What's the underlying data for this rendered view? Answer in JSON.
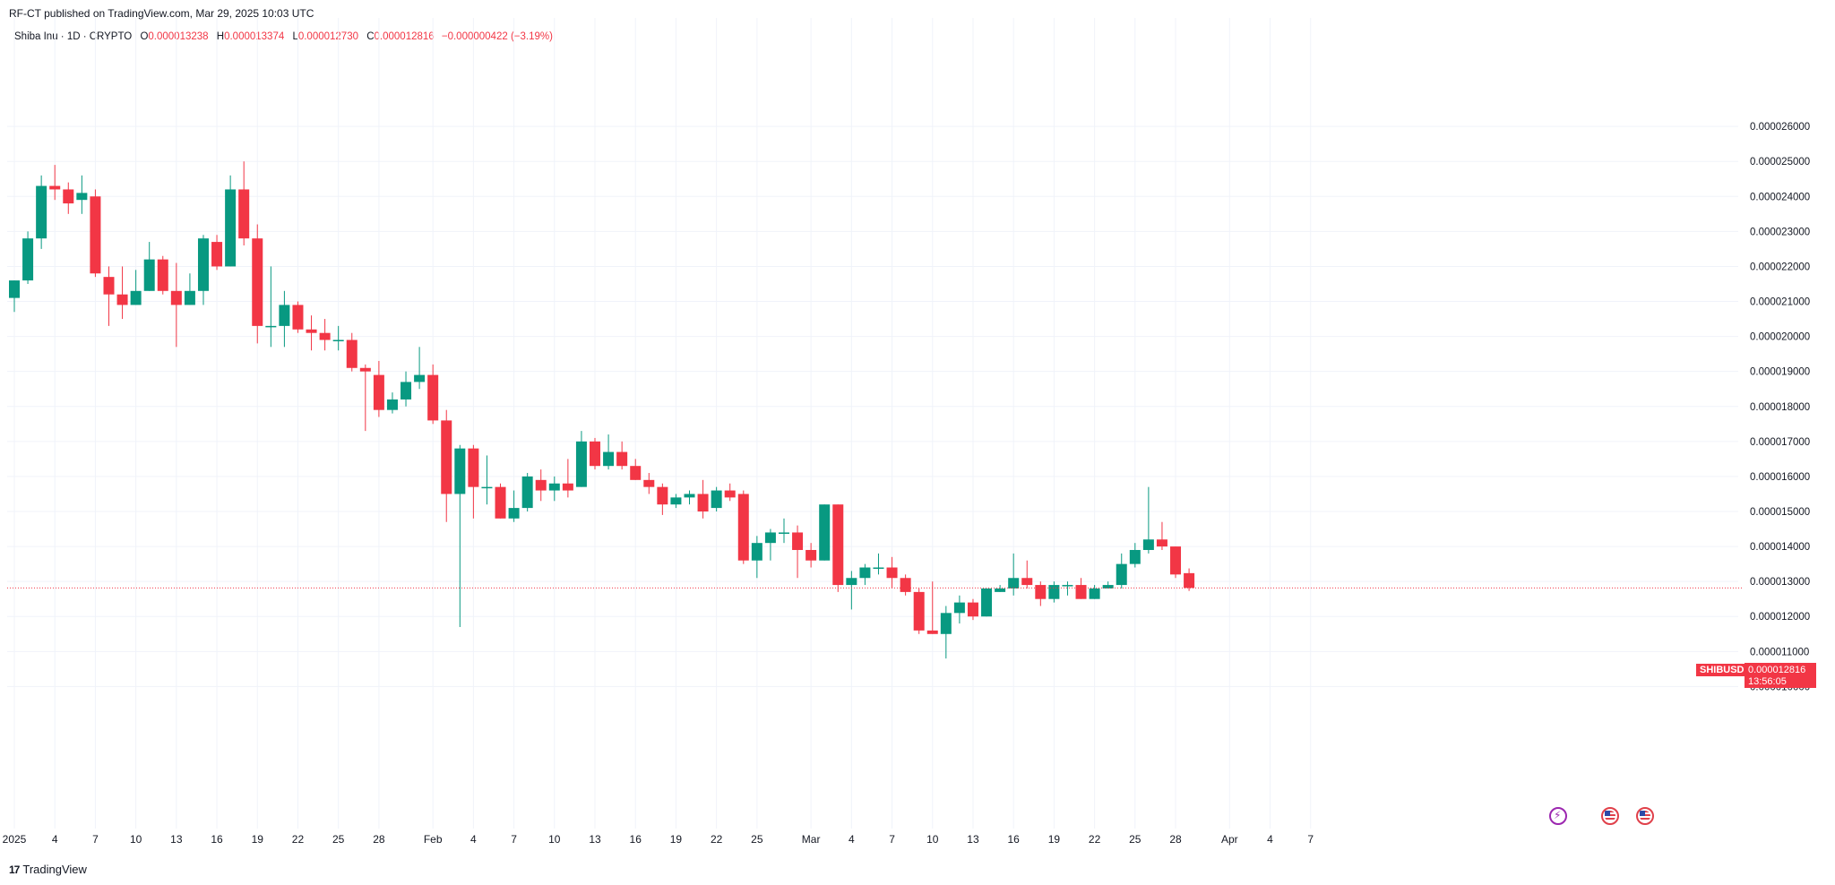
{
  "header": {
    "published_line": "RF-CT published on TradingView.com, Mar 29, 2025 10:03 UTC"
  },
  "legend": {
    "symbol": "Shiba Inu · 1D · CRYPTO",
    "o_label": "O",
    "o_value": "0.000013238",
    "h_label": "H",
    "h_value": "0.000013374",
    "l_label": "L",
    "l_value": "0.000012730",
    "c_label": "C",
    "c_value": "0.000012816",
    "change": "−0.000000422 (−3.19%)"
  },
  "price_scale": {
    "symbol_tag": "SHIBUSD",
    "last_price": "0.000012816",
    "countdown": "13:56:05"
  },
  "footer": {
    "brand": "TradingView"
  },
  "colors": {
    "up": "#089981",
    "down": "#f23645",
    "grid": "#f0f3fa",
    "text": "#131722"
  },
  "icons": [
    "lightning-event-icon",
    "us-flag-event-icon",
    "us-flag-event-icon"
  ],
  "chart_data": {
    "type": "candlestick",
    "title": "Shiba Inu · 1D · CRYPTO",
    "ylim": [
      9.5e-06,
      2.63e-05
    ],
    "y_ticks": [
      "0.000010000",
      "0.000011000",
      "0.000012000",
      "0.000013000",
      "0.000014000",
      "0.000015000",
      "0.000016000",
      "0.000017000",
      "0.000018000",
      "0.000019000",
      "0.000020000",
      "0.000021000",
      "0.000022000",
      "0.000023000",
      "0.000024000",
      "0.000025000",
      "0.000026000"
    ],
    "x_ticks": [
      "2025",
      "4",
      "7",
      "10",
      "13",
      "16",
      "19",
      "22",
      "25",
      "28",
      "Feb",
      "4",
      "7",
      "10",
      "13",
      "16",
      "19",
      "22",
      "25",
      "Mar",
      "4",
      "7",
      "10",
      "13",
      "16",
      "19",
      "22",
      "25",
      "28",
      "Apr",
      "4",
      "7"
    ],
    "x_ticks_start": "2025-01-01",
    "x_ticks_dates": [
      "2025-01-01",
      "2025-01-04",
      "2025-01-07",
      "2025-01-10",
      "2025-01-13",
      "2025-01-16",
      "2025-01-19",
      "2025-01-22",
      "2025-01-25",
      "2025-01-28",
      "2025-02-01",
      "2025-02-04",
      "2025-02-07",
      "2025-02-10",
      "2025-02-13",
      "2025-02-16",
      "2025-02-19",
      "2025-02-22",
      "2025-02-25",
      "2025-03-01",
      "2025-03-04",
      "2025-03-07",
      "2025-03-10",
      "2025-03-13",
      "2025-03-16",
      "2025-03-19",
      "2025-03-22",
      "2025-03-25",
      "2025-03-28",
      "2025-04-01",
      "2025-04-04",
      "2025-04-07"
    ],
    "grid": true,
    "last_price": 1.2816e-05,
    "candles": [
      {
        "d": "2025-01-01",
        "o": 21.1,
        "h": 21.6,
        "l": 20.7,
        "c": 21.6
      },
      {
        "d": "2025-01-02",
        "o": 21.6,
        "h": 23.0,
        "l": 21.5,
        "c": 22.8
      },
      {
        "d": "2025-01-03",
        "o": 22.8,
        "h": 24.6,
        "l": 22.5,
        "c": 24.3
      },
      {
        "d": "2025-01-04",
        "o": 24.3,
        "h": 24.9,
        "l": 23.9,
        "c": 24.2
      },
      {
        "d": "2025-01-05",
        "o": 24.2,
        "h": 24.4,
        "l": 23.5,
        "c": 23.8
      },
      {
        "d": "2025-01-06",
        "o": 23.9,
        "h": 24.6,
        "l": 23.5,
        "c": 24.1
      },
      {
        "d": "2025-01-07",
        "o": 24.0,
        "h": 24.2,
        "l": 21.7,
        "c": 21.8
      },
      {
        "d": "2025-01-08",
        "o": 21.7,
        "h": 22.0,
        "l": 20.3,
        "c": 21.2
      },
      {
        "d": "2025-01-09",
        "o": 21.2,
        "h": 22.0,
        "l": 20.5,
        "c": 20.9
      },
      {
        "d": "2025-01-10",
        "o": 20.9,
        "h": 21.9,
        "l": 20.9,
        "c": 21.3
      },
      {
        "d": "2025-01-11",
        "o": 21.3,
        "h": 22.7,
        "l": 21.3,
        "c": 22.2
      },
      {
        "d": "2025-01-12",
        "o": 22.2,
        "h": 22.3,
        "l": 21.2,
        "c": 21.3
      },
      {
        "d": "2025-01-13",
        "o": 21.3,
        "h": 22.1,
        "l": 19.7,
        "c": 20.9
      },
      {
        "d": "2025-01-14",
        "o": 20.9,
        "h": 21.8,
        "l": 20.9,
        "c": 21.3
      },
      {
        "d": "2025-01-15",
        "o": 21.3,
        "h": 22.9,
        "l": 20.9,
        "c": 22.8
      },
      {
        "d": "2025-01-16",
        "o": 22.7,
        "h": 22.9,
        "l": 21.9,
        "c": 22.0
      },
      {
        "d": "2025-01-17",
        "o": 22.0,
        "h": 24.6,
        "l": 22.0,
        "c": 24.2
      },
      {
        "d": "2025-01-18",
        "o": 24.2,
        "h": 25.0,
        "l": 22.6,
        "c": 22.8
      },
      {
        "d": "2025-01-19",
        "o": 22.8,
        "h": 23.2,
        "l": 19.8,
        "c": 20.3
      },
      {
        "d": "2025-01-20",
        "o": 20.3,
        "h": 22.0,
        "l": 19.7,
        "c": 20.3
      },
      {
        "d": "2025-01-21",
        "o": 20.3,
        "h": 21.3,
        "l": 19.7,
        "c": 20.9
      },
      {
        "d": "2025-01-22",
        "o": 20.9,
        "h": 21.0,
        "l": 20.1,
        "c": 20.2
      },
      {
        "d": "2025-01-23",
        "o": 20.2,
        "h": 20.6,
        "l": 19.6,
        "c": 20.1
      },
      {
        "d": "2025-01-24",
        "o": 20.1,
        "h": 20.5,
        "l": 19.6,
        "c": 19.9
      },
      {
        "d": "2025-01-25",
        "o": 19.9,
        "h": 20.3,
        "l": 19.6,
        "c": 19.9
      },
      {
        "d": "2025-01-26",
        "o": 19.9,
        "h": 20.1,
        "l": 19.0,
        "c": 19.1
      },
      {
        "d": "2025-01-27",
        "o": 19.1,
        "h": 19.2,
        "l": 17.3,
        "c": 19.0
      },
      {
        "d": "2025-01-28",
        "o": 18.9,
        "h": 19.3,
        "l": 17.7,
        "c": 17.9
      },
      {
        "d": "2025-01-29",
        "o": 17.9,
        "h": 18.4,
        "l": 17.8,
        "c": 18.2
      },
      {
        "d": "2025-01-30",
        "o": 18.2,
        "h": 19.0,
        "l": 18.0,
        "c": 18.7
      },
      {
        "d": "2025-01-31",
        "o": 18.7,
        "h": 19.7,
        "l": 18.5,
        "c": 18.9
      },
      {
        "d": "2025-02-01",
        "o": 18.9,
        "h": 19.2,
        "l": 17.5,
        "c": 17.6
      },
      {
        "d": "2025-02-02",
        "o": 17.6,
        "h": 17.9,
        "l": 14.7,
        "c": 15.5
      },
      {
        "d": "2025-02-03",
        "o": 15.5,
        "h": 16.9,
        "l": 11.7,
        "c": 16.8
      },
      {
        "d": "2025-02-04",
        "o": 16.8,
        "h": 16.9,
        "l": 14.8,
        "c": 15.7
      },
      {
        "d": "2025-02-05",
        "o": 15.7,
        "h": 16.6,
        "l": 15.2,
        "c": 15.7
      },
      {
        "d": "2025-02-06",
        "o": 15.7,
        "h": 15.8,
        "l": 14.8,
        "c": 14.8
      },
      {
        "d": "2025-02-07",
        "o": 14.8,
        "h": 15.6,
        "l": 14.7,
        "c": 15.1
      },
      {
        "d": "2025-02-08",
        "o": 15.1,
        "h": 16.1,
        "l": 15.0,
        "c": 16.0
      },
      {
        "d": "2025-02-09",
        "o": 15.9,
        "h": 16.2,
        "l": 15.3,
        "c": 15.6
      },
      {
        "d": "2025-02-10",
        "o": 15.6,
        "h": 16.0,
        "l": 15.3,
        "c": 15.8
      },
      {
        "d": "2025-02-11",
        "o": 15.8,
        "h": 16.5,
        "l": 15.4,
        "c": 15.6
      },
      {
        "d": "2025-02-12",
        "o": 15.7,
        "h": 17.3,
        "l": 15.7,
        "c": 17.0
      },
      {
        "d": "2025-02-13",
        "o": 17.0,
        "h": 17.1,
        "l": 16.2,
        "c": 16.3
      },
      {
        "d": "2025-02-14",
        "o": 16.3,
        "h": 17.2,
        "l": 16.2,
        "c": 16.7
      },
      {
        "d": "2025-02-15",
        "o": 16.7,
        "h": 17.0,
        "l": 16.2,
        "c": 16.3
      },
      {
        "d": "2025-02-16",
        "o": 16.3,
        "h": 16.5,
        "l": 15.9,
        "c": 15.9
      },
      {
        "d": "2025-02-17",
        "o": 15.9,
        "h": 16.1,
        "l": 15.5,
        "c": 15.7
      },
      {
        "d": "2025-02-18",
        "o": 15.7,
        "h": 15.8,
        "l": 14.9,
        "c": 15.2
      },
      {
        "d": "2025-02-19",
        "o": 15.2,
        "h": 15.5,
        "l": 15.1,
        "c": 15.4
      },
      {
        "d": "2025-02-20",
        "o": 15.4,
        "h": 15.6,
        "l": 15.2,
        "c": 15.5
      },
      {
        "d": "2025-02-21",
        "o": 15.5,
        "h": 15.9,
        "l": 14.8,
        "c": 15.0
      },
      {
        "d": "2025-02-22",
        "o": 15.1,
        "h": 15.7,
        "l": 15.0,
        "c": 15.6
      },
      {
        "d": "2025-02-23",
        "o": 15.6,
        "h": 15.8,
        "l": 15.3,
        "c": 15.4
      },
      {
        "d": "2025-02-24",
        "o": 15.5,
        "h": 15.6,
        "l": 13.5,
        "c": 13.6
      },
      {
        "d": "2025-02-25",
        "o": 13.6,
        "h": 14.3,
        "l": 13.1,
        "c": 14.1
      },
      {
        "d": "2025-02-26",
        "o": 14.1,
        "h": 14.5,
        "l": 13.6,
        "c": 14.4
      },
      {
        "d": "2025-02-27",
        "o": 14.4,
        "h": 14.8,
        "l": 14.1,
        "c": 14.4
      },
      {
        "d": "2025-02-28",
        "o": 14.4,
        "h": 14.6,
        "l": 13.1,
        "c": 13.9
      },
      {
        "d": "2025-03-01",
        "o": 13.9,
        "h": 14.1,
        "l": 13.4,
        "c": 13.6
      },
      {
        "d": "2025-03-02",
        "o": 13.6,
        "h": 15.2,
        "l": 13.6,
        "c": 15.2
      },
      {
        "d": "2025-03-03",
        "o": 15.2,
        "h": 15.2,
        "l": 12.7,
        "c": 12.9
      },
      {
        "d": "2025-03-04",
        "o": 12.9,
        "h": 13.3,
        "l": 12.2,
        "c": 13.1
      },
      {
        "d": "2025-03-05",
        "o": 13.1,
        "h": 13.5,
        "l": 12.9,
        "c": 13.4
      },
      {
        "d": "2025-03-06",
        "o": 13.4,
        "h": 13.8,
        "l": 13.2,
        "c": 13.4
      },
      {
        "d": "2025-03-07",
        "o": 13.4,
        "h": 13.7,
        "l": 12.8,
        "c": 13.1
      },
      {
        "d": "2025-03-08",
        "o": 13.1,
        "h": 13.2,
        "l": 12.6,
        "c": 12.7
      },
      {
        "d": "2025-03-09",
        "o": 12.7,
        "h": 12.8,
        "l": 11.5,
        "c": 11.6
      },
      {
        "d": "2025-03-10",
        "o": 11.6,
        "h": 13.0,
        "l": 11.5,
        "c": 11.5
      },
      {
        "d": "2025-03-11",
        "o": 11.5,
        "h": 12.3,
        "l": 10.8,
        "c": 12.1
      },
      {
        "d": "2025-03-12",
        "o": 12.1,
        "h": 12.6,
        "l": 11.8,
        "c": 12.4
      },
      {
        "d": "2025-03-13",
        "o": 12.4,
        "h": 12.5,
        "l": 11.9,
        "c": 12.0
      },
      {
        "d": "2025-03-14",
        "o": 12.0,
        "h": 12.8,
        "l": 12.0,
        "c": 12.8
      },
      {
        "d": "2025-03-15",
        "o": 12.7,
        "h": 12.9,
        "l": 12.7,
        "c": 12.8
      },
      {
        "d": "2025-03-16",
        "o": 12.8,
        "h": 13.8,
        "l": 12.6,
        "c": 13.1
      },
      {
        "d": "2025-03-17",
        "o": 13.1,
        "h": 13.6,
        "l": 12.8,
        "c": 12.9
      },
      {
        "d": "2025-03-18",
        "o": 12.9,
        "h": 13.0,
        "l": 12.3,
        "c": 12.5
      },
      {
        "d": "2025-03-19",
        "o": 12.5,
        "h": 13.0,
        "l": 12.4,
        "c": 12.9
      },
      {
        "d": "2025-03-20",
        "o": 12.9,
        "h": 13.0,
        "l": 12.6,
        "c": 12.9
      },
      {
        "d": "2025-03-21",
        "o": 12.9,
        "h": 13.1,
        "l": 12.5,
        "c": 12.5
      },
      {
        "d": "2025-03-22",
        "o": 12.5,
        "h": 12.9,
        "l": 12.5,
        "c": 12.8
      },
      {
        "d": "2025-03-23",
        "o": 12.8,
        "h": 13.0,
        "l": 12.8,
        "c": 12.9
      },
      {
        "d": "2025-03-24",
        "o": 12.9,
        "h": 13.8,
        "l": 12.8,
        "c": 13.5
      },
      {
        "d": "2025-03-25",
        "o": 13.5,
        "h": 14.1,
        "l": 13.4,
        "c": 13.9
      },
      {
        "d": "2025-03-26",
        "o": 13.9,
        "h": 15.7,
        "l": 13.8,
        "c": 14.2
      },
      {
        "d": "2025-03-27",
        "o": 14.2,
        "h": 14.7,
        "l": 13.9,
        "c": 14.0
      },
      {
        "d": "2025-03-28",
        "o": 14.0,
        "h": 14.0,
        "l": 13.1,
        "c": 13.2
      },
      {
        "d": "2025-03-29",
        "o": 13.238,
        "h": 13.374,
        "l": 12.73,
        "c": 12.816
      }
    ],
    "candle_value_multiplier": 1e-06
  }
}
